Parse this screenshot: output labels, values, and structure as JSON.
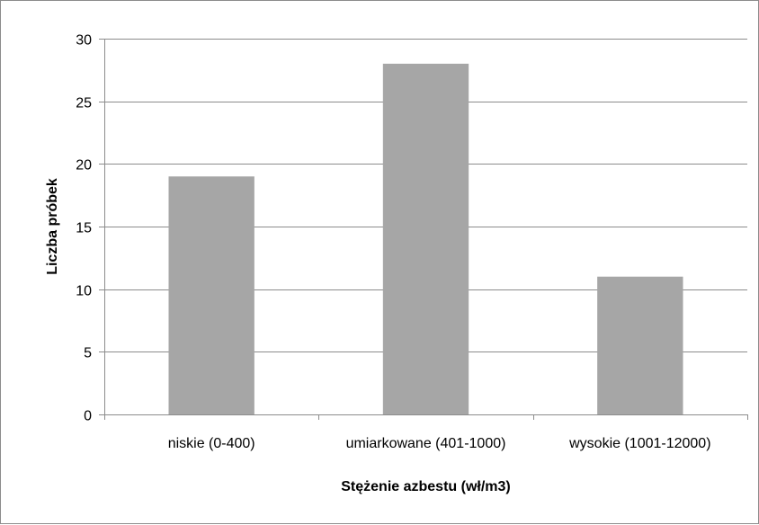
{
  "chart_data": {
    "type": "bar",
    "categories": [
      "niskie (0-400)",
      "umiarkowane (401-1000)",
      "wysokie (1001-12000)"
    ],
    "values": [
      19,
      28,
      11
    ],
    "title": "",
    "xlabel": "Stężenie azbestu (wł/m3)",
    "ylabel": "Liczba próbek",
    "ylim": [
      0,
      30
    ],
    "yticks": [
      0,
      5,
      10,
      15,
      20,
      25,
      30
    ],
    "grid": true,
    "colors": {
      "bar": "#a6a6a6",
      "grid": "#8c8c8c",
      "axis": "#8c8c8c",
      "frame": "#8c8c8c"
    }
  }
}
